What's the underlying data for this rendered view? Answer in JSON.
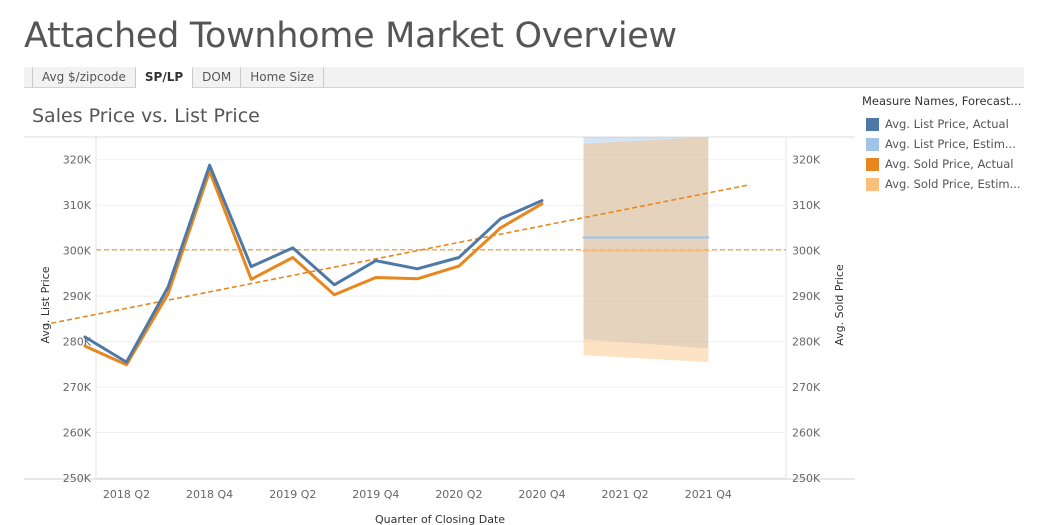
{
  "page": {
    "title": "Attached Townhome Market Overview"
  },
  "tabs": [
    {
      "label": "Avg $/zipcode",
      "active": false
    },
    {
      "label": "SP/LP",
      "active": true
    },
    {
      "label": "DOM",
      "active": false
    },
    {
      "label": "Home Size",
      "active": false
    }
  ],
  "legend": {
    "title": "Measure Names, Forecast...",
    "items": [
      {
        "label": "Avg. List Price, Actual",
        "color": "#4e79a7"
      },
      {
        "label": "Avg. List Price, Estim...",
        "color": "#a0c4e8"
      },
      {
        "label": "Avg. Sold Price, Actual",
        "color": "#e8871e"
      },
      {
        "label": "Avg. Sold Price, Estim...",
        "color": "#fbbf7c"
      }
    ]
  },
  "chart_data": {
    "type": "line",
    "title": "Sales Price vs. List Price",
    "xlabel": "Quarter of Closing Date",
    "ylabel_left": "Avg. List Price",
    "ylabel_right": "Avg. Sold Price",
    "ylim": [
      250000,
      325000
    ],
    "y_ticks": [
      250000,
      260000,
      270000,
      280000,
      290000,
      300000,
      310000,
      320000
    ],
    "y_tick_labels": [
      "250K",
      "260K",
      "270K",
      "280K",
      "290K",
      "300K",
      "310K",
      "320K"
    ],
    "x_quarters": [
      "2018 Q1",
      "2018 Q2",
      "2018 Q3",
      "2018 Q4",
      "2019 Q1",
      "2019 Q2",
      "2019 Q3",
      "2019 Q4",
      "2020 Q1",
      "2020 Q2",
      "2020 Q3",
      "2020 Q4",
      "2021 Q1",
      "2021 Q2",
      "2021 Q3",
      "2021 Q4"
    ],
    "x_tick_labels": [
      "2018 Q2",
      "2018 Q4",
      "2019 Q2",
      "2019 Q4",
      "2020 Q2",
      "2020 Q4",
      "2021 Q2",
      "2021 Q4"
    ],
    "grid": true,
    "legend_position": "right",
    "series": [
      {
        "name": "Avg. List Price, Actual",
        "color": "#4e79a7",
        "x": [
          "2018 Q1",
          "2018 Q2",
          "2018 Q3",
          "2018 Q4",
          "2019 Q1",
          "2019 Q2",
          "2019 Q3",
          "2019 Q4",
          "2020 Q1",
          "2020 Q2",
          "2020 Q3",
          "2020 Q4"
        ],
        "values": [
          281000,
          275500,
          292000,
          318800,
          296500,
          300600,
          292500,
          297800,
          296000,
          298500,
          307000,
          311000
        ]
      },
      {
        "name": "Avg. Sold Price, Actual",
        "color": "#e8871e",
        "x": [
          "2018 Q1",
          "2018 Q2",
          "2018 Q3",
          "2018 Q4",
          "2019 Q1",
          "2019 Q2",
          "2019 Q3",
          "2019 Q4",
          "2020 Q1",
          "2020 Q2",
          "2020 Q3",
          "2020 Q4"
        ],
        "values": [
          279000,
          274900,
          290500,
          317500,
          293700,
          298500,
          290300,
          294100,
          293800,
          296600,
          305000,
          310300
        ]
      },
      {
        "name": "Avg. List Price, Estim...",
        "color": "#a0c4e8",
        "x": [
          "2021 Q1",
          "2021 Q4"
        ],
        "values": [
          302900,
          302900
        ]
      },
      {
        "name": "Avg. Sold Price, Estim...",
        "color": "#fbbf7c",
        "x": [
          "2021 Q1",
          "2021 Q4"
        ],
        "values": [
          300000,
          300000
        ]
      }
    ],
    "forecast_bands": [
      {
        "series": "Avg. List Price, Estim...",
        "color": "#a0c4e8",
        "x": [
          "2021 Q1",
          "2021 Q4"
        ],
        "upper": [
          325000,
          325000
        ],
        "lower": [
          280500,
          278500
        ]
      },
      {
        "series": "Avg. Sold Price, Estim...",
        "color": "#fbbf7c",
        "x": [
          "2021 Q1",
          "2021 Q4"
        ],
        "upper": [
          323500,
          325000
        ],
        "lower": [
          277000,
          275500
        ]
      }
    ],
    "reference_lines": [
      {
        "type": "average",
        "value": 300200,
        "color": "#f5a95c"
      }
    ],
    "trend_lines": [
      {
        "color": "#e8871e",
        "x": [
          "2017 Q4",
          "2022 Q1"
        ],
        "values": [
          283700,
          314500
        ]
      }
    ]
  }
}
